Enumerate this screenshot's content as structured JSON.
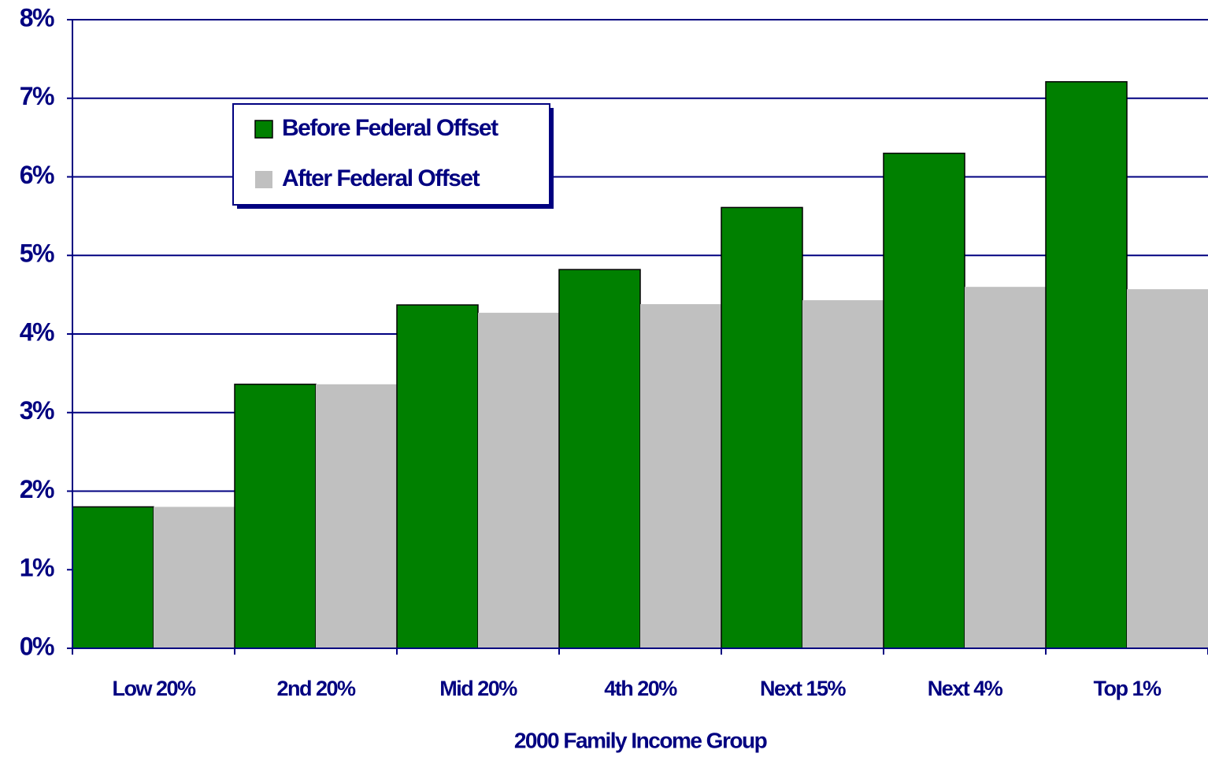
{
  "chart_data": {
    "type": "bar",
    "x_label": "2000 Family Income Group",
    "categories": [
      "Low 20%",
      "2nd 20%",
      "Mid 20%",
      "4th 20%",
      "Next 15%",
      "Next 4%",
      "Top 1%"
    ],
    "series": [
      {
        "name": "Before Federal Offset",
        "color": "#008000",
        "values": [
          1.8,
          3.36,
          4.37,
          4.82,
          5.61,
          6.3,
          7.21
        ]
      },
      {
        "name": "After Federal Offset",
        "color": "#c0c0c0",
        "values": [
          1.8,
          3.36,
          4.27,
          4.38,
          4.43,
          4.6,
          4.57
        ]
      }
    ],
    "ylim": [
      0,
      8
    ],
    "yticks": [
      {
        "value": 0,
        "label": "0%"
      },
      {
        "value": 1,
        "label": "1%"
      },
      {
        "value": 2,
        "label": "2%"
      },
      {
        "value": 3,
        "label": "3%"
      },
      {
        "value": 4,
        "label": "4%"
      },
      {
        "value": 5,
        "label": "5%"
      },
      {
        "value": 6,
        "label": "6%"
      },
      {
        "value": 7,
        "label": "7%"
      },
      {
        "value": 8,
        "label": "8%"
      }
    ],
    "grid": true,
    "legend": "upper left"
  }
}
